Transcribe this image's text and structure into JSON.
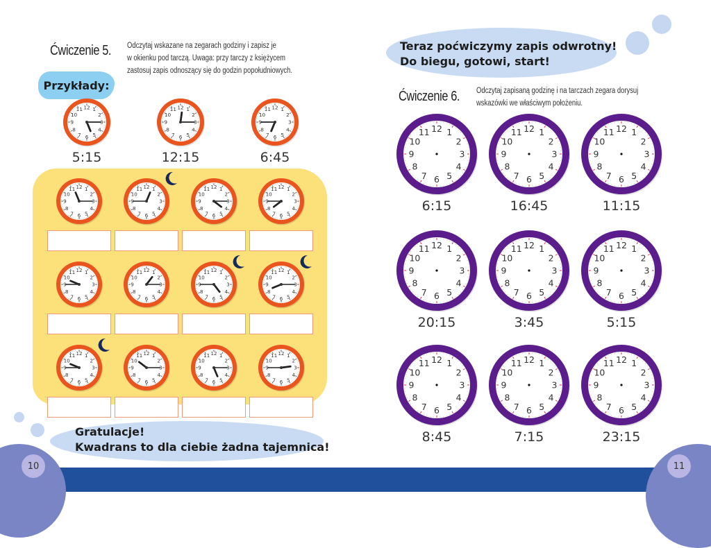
{
  "left_page": {
    "exercise_title": "Ćwiczenie 5.",
    "instructions": [
      "Odczytaj wskazane na zegarach godziny i zapisz je",
      "w okienku pod tarczą. Uwaga: przy tarczy z księżycem",
      "zastosuj zapis odnoszący się do godzin popołudniowych."
    ],
    "examples_label": "Przykłady:",
    "examples": [
      {
        "time": "5:15",
        "hour": 5,
        "minute": 15
      },
      {
        "time": "12:15",
        "hour": 12,
        "minute": 15
      },
      {
        "time": "6:45",
        "hour": 6,
        "minute": 45
      }
    ],
    "exercise_clocks": [
      {
        "hour": 11,
        "minute": 15,
        "moon": false,
        "answer": ""
      },
      {
        "hour": 12,
        "minute": 45,
        "moon": true,
        "answer": ""
      },
      {
        "hour": 4,
        "minute": 15,
        "moon": false,
        "answer": ""
      },
      {
        "hour": 7,
        "minute": 45,
        "moon": false,
        "answer": ""
      },
      {
        "hour": 9,
        "minute": 45,
        "moon": false,
        "answer": ""
      },
      {
        "hour": 1,
        "minute": 15,
        "moon": false,
        "answer": ""
      },
      {
        "hour": 4,
        "minute": 45,
        "moon": true,
        "answer": ""
      },
      {
        "hour": 8,
        "minute": 15,
        "moon": true,
        "answer": ""
      },
      {
        "hour": 9,
        "minute": 45,
        "moon": true,
        "answer": ""
      },
      {
        "hour": 10,
        "minute": 15,
        "moon": false,
        "answer": ""
      },
      {
        "hour": 5,
        "minute": 15,
        "moon": false,
        "answer": ""
      },
      {
        "hour": 2,
        "minute": 45,
        "moon": false,
        "answer": ""
      }
    ],
    "congrats": [
      "Gratulacje!",
      "Kwadrans to dla ciebie żadna tajemnica!"
    ],
    "page_number": "10"
  },
  "right_page": {
    "bubble": [
      "Teraz poćwiczymy zapis odwrotny!",
      "Do biegu, gotowi, start!"
    ],
    "exercise_title": "Ćwiczenie 6.",
    "instructions": [
      "Odczytaj zapisaną godzinę i na tarczach zegara dorysuj",
      "wskazówki we właściwym położeniu."
    ],
    "clocks": [
      {
        "time": "6:15"
      },
      {
        "time": "16:45"
      },
      {
        "time": "11:15"
      },
      {
        "time": "20:15"
      },
      {
        "time": "3:45"
      },
      {
        "time": "5:15"
      },
      {
        "time": "8:45"
      },
      {
        "time": "7:15"
      },
      {
        "time": "23:15"
      }
    ],
    "page_number": "11"
  },
  "colors": {
    "orange_rim": "#e9541f",
    "purple_rim": "#5b1d8c",
    "yellow_panel": "#fce07a",
    "bubble_blue": "#c9dbf2",
    "tag_blue": "#8ccff0",
    "footer_blue": "#20509c",
    "footer_lilac": "#7a85c6",
    "moon": "#142a5c"
  }
}
